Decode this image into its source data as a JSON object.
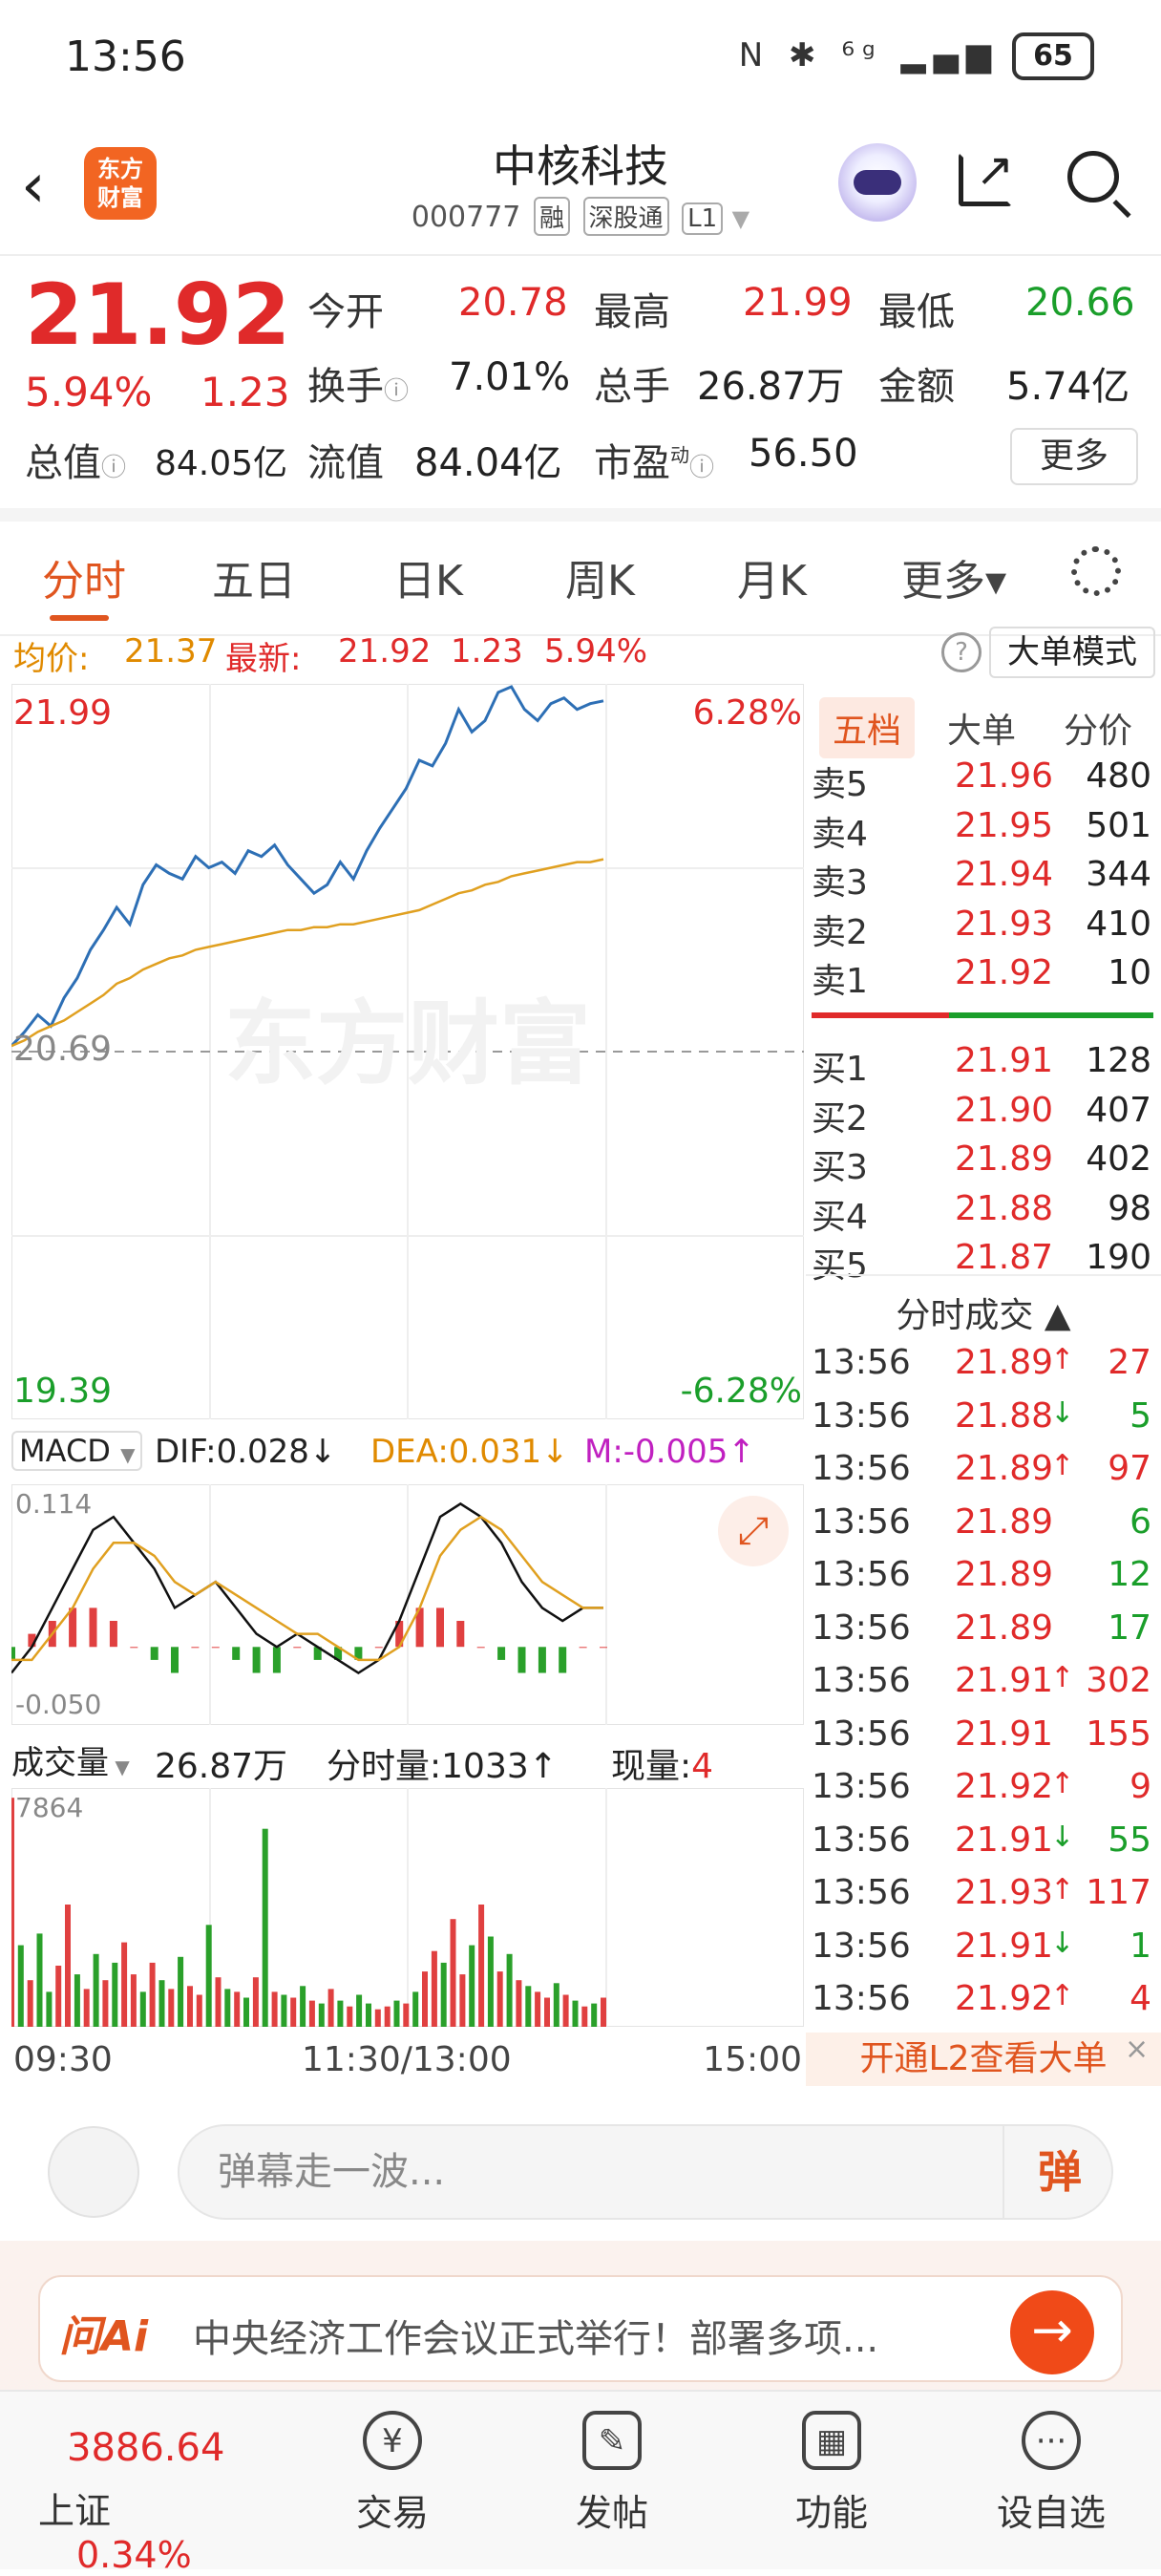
{
  "status_bar": {
    "time": "13:56",
    "icons": "N ✱ ⁶ᵍ ▂▄▆",
    "battery": "65"
  },
  "header": {
    "logo_text": "东方\n财富",
    "stock_name": "中核科技",
    "stock_code": "000777",
    "tags": [
      "融",
      "深股通",
      "L1"
    ]
  },
  "quote": {
    "price": "21.92",
    "change_pct": "5.94%",
    "change": "1.23",
    "open_label": "今开",
    "open": "20.78",
    "high_label": "最高",
    "high": "21.99",
    "low_label": "最低",
    "low": "20.66",
    "turnover_label": "换手",
    "turnover": "7.01%",
    "volume_label": "总手",
    "volume": "26.87万",
    "amount_label": "金额",
    "amount": "5.74亿",
    "mktcap_label": "总值",
    "mktcap": "84.05亿",
    "float_label": "流值",
    "float": "84.04亿",
    "pe_label": "市盈",
    "pe_sup": "动",
    "pe": "56.50",
    "more": "更多"
  },
  "tabs": [
    "分时",
    "五日",
    "日K",
    "周K",
    "月K",
    "更多▾"
  ],
  "info_row": {
    "avg_label": "均价:",
    "avg": "21.37",
    "latest_label": "最新:",
    "latest": "21.92",
    "chg": "1.23",
    "pct": "5.94%",
    "mode": "大单模式"
  },
  "chart": {
    "top_left": "21.99",
    "top_right": "6.28%",
    "mid_left": "20.69",
    "bottom_left": "19.39",
    "bottom_right": "-6.28%",
    "watermark": "东方财富"
  },
  "chart_data": {
    "type": "line",
    "ylim": [
      19.39,
      21.99
    ],
    "prev_close": 20.69,
    "series": [
      {
        "values": [
          20.71,
          20.76,
          20.82,
          20.78,
          20.88,
          20.95,
          21.05,
          21.12,
          21.2,
          21.14,
          21.28,
          21.35,
          21.32,
          21.3,
          21.38,
          21.34,
          21.36,
          21.32,
          21.4,
          21.38,
          21.42,
          21.35,
          21.3,
          21.25,
          21.28,
          21.36,
          21.3,
          21.4,
          21.48,
          21.55,
          21.62,
          21.72,
          21.7,
          21.78,
          21.9,
          21.82,
          21.86,
          21.96,
          21.98,
          21.9,
          21.86,
          21.92,
          21.94,
          21.9,
          21.92,
          21.93
        ]
      },
      {
        "values": [
          20.71,
          20.73,
          20.76,
          20.78,
          20.8,
          20.83,
          20.86,
          20.89,
          20.93,
          20.95,
          20.98,
          21.0,
          21.02,
          21.03,
          21.05,
          21.06,
          21.07,
          21.08,
          21.09,
          21.1,
          21.11,
          21.12,
          21.12,
          21.13,
          21.13,
          21.14,
          21.14,
          21.15,
          21.16,
          21.17,
          21.18,
          21.19,
          21.21,
          21.23,
          21.25,
          21.26,
          21.28,
          21.29,
          21.31,
          21.32,
          21.33,
          21.34,
          21.35,
          21.36,
          21.36,
          21.37
        ]
      }
    ]
  },
  "macd": {
    "label": "MACD",
    "dif": "DIF:0.028↓",
    "dea": "DEA:0.031↓",
    "m": "M:-0.005↑",
    "top": "0.114",
    "bottom": "-0.050",
    "dif_values": [
      -0.02,
      0.0,
      0.03,
      0.06,
      0.09,
      0.1,
      0.08,
      0.06,
      0.03,
      0.04,
      0.05,
      0.03,
      0.01,
      0.0,
      0.01,
      0.0,
      -0.01,
      -0.02,
      -0.01,
      0.02,
      0.06,
      0.1,
      0.11,
      0.1,
      0.08,
      0.05,
      0.03,
      0.02,
      0.03,
      0.03
    ],
    "dea_values": [
      -0.01,
      -0.01,
      0.01,
      0.03,
      0.06,
      0.08,
      0.08,
      0.07,
      0.05,
      0.04,
      0.05,
      0.04,
      0.03,
      0.02,
      0.01,
      0.01,
      0.0,
      -0.01,
      -0.01,
      0.0,
      0.03,
      0.07,
      0.09,
      0.1,
      0.09,
      0.07,
      0.05,
      0.04,
      0.03,
      0.03
    ],
    "hist_values": [
      -0.01,
      0.01,
      0.02,
      0.03,
      0.03,
      0.02,
      0.0,
      -0.01,
      -0.02,
      0.0,
      0.0,
      -0.01,
      -0.02,
      -0.02,
      0.0,
      -0.01,
      -0.01,
      -0.01,
      0.0,
      0.02,
      0.03,
      0.03,
      0.02,
      0.0,
      -0.01,
      -0.02,
      -0.02,
      -0.02,
      0.0,
      0.0
    ]
  },
  "volume": {
    "label": "成交量",
    "total": "26.87万",
    "fs_label": "分时量:",
    "fs": "1033↑",
    "cur_label": "现量:",
    "cur": "4",
    "top": "7864",
    "values": [
      7864,
      2800,
      1600,
      3200,
      1200,
      2100,
      4200,
      1800,
      1300,
      2500,
      1600,
      2200,
      2900,
      1800,
      1200,
      2200,
      1600,
      1300,
      2400,
      1400,
      1100,
      3500,
      1700,
      1300,
      1200,
      1000,
      1700,
      6800,
      1200,
      1100,
      1000,
      1400,
      900,
      800,
      1300,
      900,
      700,
      1100,
      800,
      600,
      700,
      900,
      800,
      1200,
      1900,
      2600,
      2200,
      3700,
      1800,
      2800,
      4200,
      3100,
      1900,
      2500,
      1600,
      1400,
      1200,
      1000,
      1500,
      1100,
      900,
      700,
      800,
      1000
    ],
    "colors": "rgrggrrgrgrgrrgrgrgrrgrgrgrgrgrgrgrgrggrrgrgrrgrrgrgrgrgrrgrgrgr"
  },
  "time_axis": [
    "09:30",
    "11:30/13:00",
    "15:00"
  ],
  "right_panel": {
    "tabs": [
      "五档",
      "大单",
      "分价"
    ],
    "asks": [
      {
        "name": "卖5",
        "price": "21.96",
        "vol": "480"
      },
      {
        "name": "卖4",
        "price": "21.95",
        "vol": "501"
      },
      {
        "name": "卖3",
        "price": "21.94",
        "vol": "344"
      },
      {
        "name": "卖2",
        "price": "21.93",
        "vol": "410"
      },
      {
        "name": "卖1",
        "price": "21.92",
        "vol": "10"
      }
    ],
    "bids": [
      {
        "name": "买1",
        "price": "21.91",
        "vol": "128"
      },
      {
        "name": "买2",
        "price": "21.90",
        "vol": "407"
      },
      {
        "name": "买3",
        "price": "21.89",
        "vol": "402"
      },
      {
        "name": "买4",
        "price": "21.88",
        "vol": "98"
      },
      {
        "name": "买5",
        "price": "21.87",
        "vol": "190"
      }
    ],
    "trades_title": "分时成交 ▲",
    "trades": [
      {
        "t": "13:56",
        "p": "21.89",
        "a": "↑",
        "v": "27",
        "c": "red"
      },
      {
        "t": "13:56",
        "p": "21.88",
        "a": "↓",
        "v": "5",
        "c": "green"
      },
      {
        "t": "13:56",
        "p": "21.89",
        "a": "↑",
        "v": "97",
        "c": "red"
      },
      {
        "t": "13:56",
        "p": "21.89",
        "a": "",
        "v": "6",
        "c": "green"
      },
      {
        "t": "13:56",
        "p": "21.89",
        "a": "",
        "v": "12",
        "c": "green"
      },
      {
        "t": "13:56",
        "p": "21.89",
        "a": "",
        "v": "17",
        "c": "green"
      },
      {
        "t": "13:56",
        "p": "21.91",
        "a": "↑",
        "v": "302",
        "c": "red"
      },
      {
        "t": "13:56",
        "p": "21.91",
        "a": "",
        "v": "155",
        "c": "red"
      },
      {
        "t": "13:56",
        "p": "21.92",
        "a": "↑",
        "v": "9",
        "c": "red"
      },
      {
        "t": "13:56",
        "p": "21.91",
        "a": "↓",
        "v": "55",
        "c": "green"
      },
      {
        "t": "13:56",
        "p": "21.93",
        "a": "↑",
        "v": "117",
        "c": "red"
      },
      {
        "t": "13:56",
        "p": "21.91",
        "a": "↓",
        "v": "1",
        "c": "green"
      },
      {
        "t": "13:56",
        "p": "21.92",
        "a": "↑",
        "v": "4",
        "c": "red"
      }
    ],
    "l2": "开通L2查看大单"
  },
  "comment": {
    "placeholder": "弹幕走一波...",
    "dan": "弹"
  },
  "ai": {
    "tag": "问Ai",
    "text": "中央经济工作会议正式举行！部署多项..."
  },
  "nav": {
    "index_value": "3886.64",
    "index_name": "上证",
    "index_pct": "0.34%",
    "items": [
      "交易",
      "发帖",
      "功能",
      "设自选"
    ]
  }
}
